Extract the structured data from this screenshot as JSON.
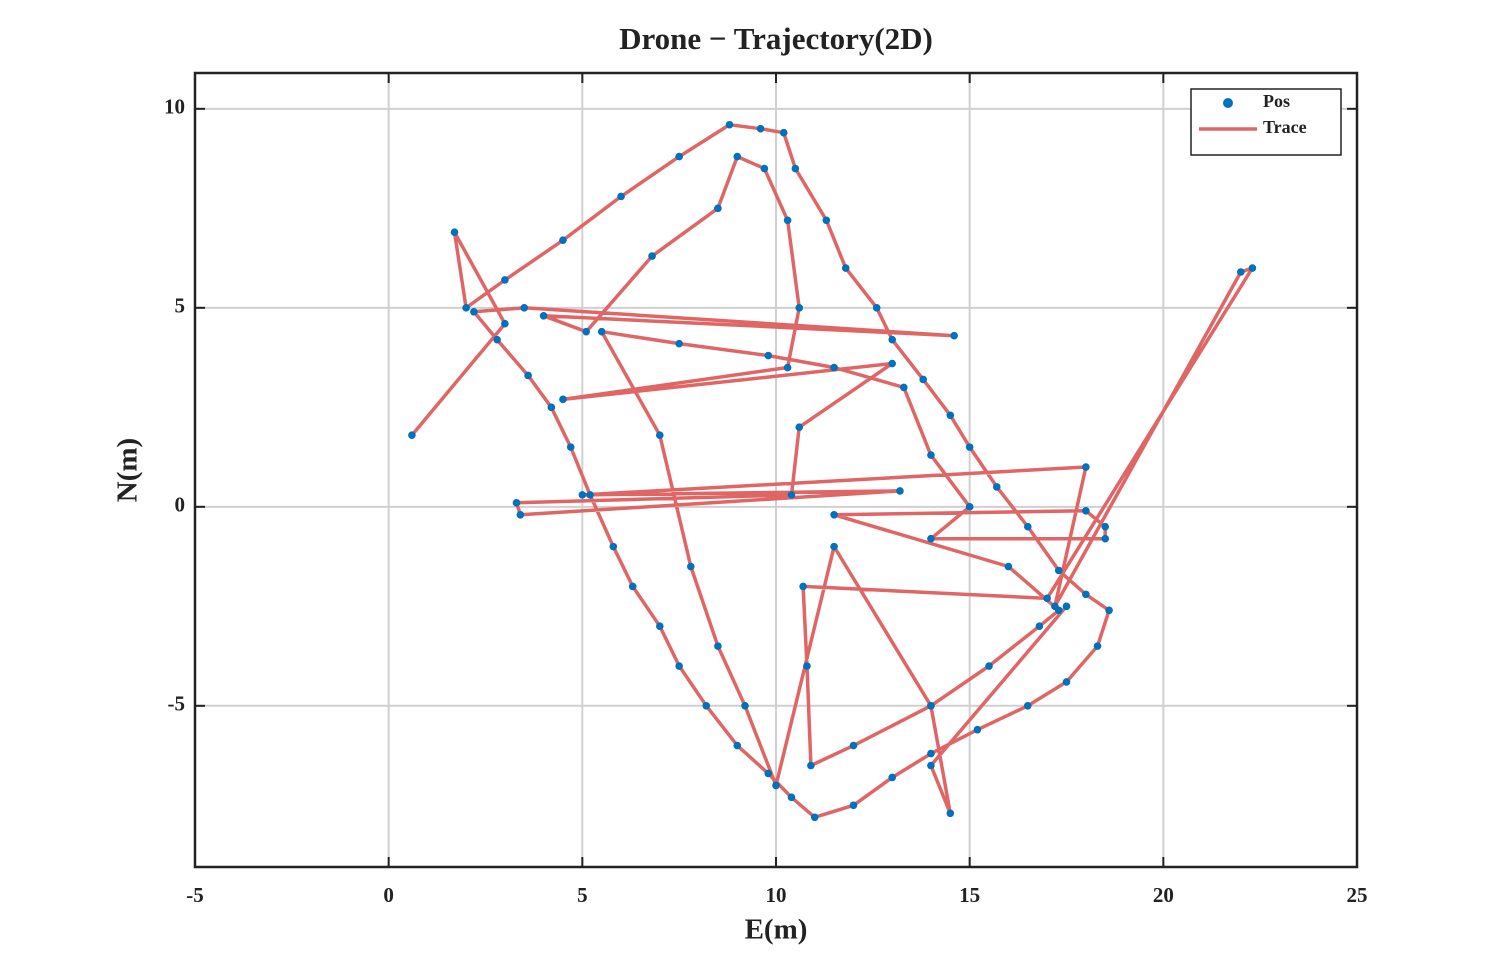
{
  "chart_data": {
    "type": "trajectory",
    "title": "Drone − Trajectory(2D)",
    "x_label": "E(m)",
    "y_label": "N(m)",
    "xlim": [
      -5,
      25
    ],
    "ylim": [
      -9.05,
      10.9
    ],
    "xticks": [
      -5,
      0,
      5,
      10,
      15,
      20,
      25
    ],
    "yticks": [
      -5,
      0,
      5,
      10
    ],
    "grid": true,
    "legend": "upper right",
    "x": [
      0.6,
      3.0,
      1.7,
      2.0,
      3.0,
      4.5,
      6.0,
      7.5,
      8.8,
      9.6,
      10.2,
      10.5,
      11.3,
      11.8,
      12.6,
      13.0,
      13.8,
      14.5,
      15.0,
      15.7,
      16.5,
      17.3,
      18.0,
      18.6,
      18.3,
      17.5,
      16.5,
      15.2,
      14.0,
      13.0,
      12.0,
      11.0,
      10.4,
      9.8,
      9.0,
      8.2,
      7.5,
      7.0,
      6.3,
      5.8,
      5.2,
      4.7,
      4.2,
      3.6,
      2.8,
      2.2,
      3.5,
      14.6,
      4.0,
      5.1,
      6.8,
      8.5,
      9.0,
      9.7,
      10.3,
      10.6,
      10.3,
      4.5,
      13.0,
      10.6,
      10.4,
      3.3,
      3.4,
      13.2,
      5.0,
      18.0,
      17.2,
      22.0,
      22.3,
      17.0,
      10.7,
      10.8,
      10.9,
      12.0,
      14.0,
      15.5,
      16.8,
      17.3,
      16.0,
      11.5,
      18.0,
      18.5,
      18.5,
      14.0,
      15.0,
      14.0,
      13.3,
      11.5,
      9.8,
      7.5,
      5.5,
      7.0,
      7.8,
      8.5,
      9.2,
      10.0,
      11.5,
      14.0,
      14.5,
      14.0,
      17.5
    ],
    "series": [
      {
        "name": "Pos",
        "mode": "markers",
        "color": "#0072bd",
        "values": [
          1.8,
          4.6,
          6.9,
          5.0,
          5.7,
          6.7,
          7.8,
          8.8,
          9.6,
          9.5,
          9.4,
          8.5,
          7.2,
          6.0,
          5.0,
          4.2,
          3.2,
          2.3,
          1.5,
          0.5,
          -0.5,
          -1.6,
          -2.2,
          -2.6,
          -3.5,
          -4.4,
          -5.0,
          -5.6,
          -6.2,
          -6.8,
          -7.5,
          -7.8,
          -7.3,
          -6.7,
          -6.0,
          -5.0,
          -4.0,
          -3.0,
          -2.0,
          -1.0,
          0.3,
          1.5,
          2.5,
          3.3,
          4.2,
          4.9,
          5.0,
          4.3,
          4.8,
          4.4,
          6.3,
          7.5,
          8.8,
          8.5,
          7.2,
          5.0,
          3.5,
          2.7,
          3.6,
          2.0,
          0.3,
          0.1,
          -0.2,
          0.4,
          0.3,
          1.0,
          -2.5,
          5.9,
          6.0,
          -2.3,
          -2.0,
          -4.0,
          -6.5,
          -6.0,
          -5.0,
          -4.0,
          -3.0,
          -2.6,
          -1.5,
          -0.2,
          -0.1,
          -0.5,
          -0.8,
          -0.8,
          0.0,
          1.3,
          3.0,
          3.5,
          3.8,
          4.1,
          4.4,
          1.8,
          -1.5,
          -3.5,
          -5.0,
          -7.0,
          -1.0,
          -5.0,
          -7.7,
          -6.5,
          -2.5
        ]
      },
      {
        "name": "Trace",
        "mode": "line",
        "color": "#e06666",
        "values": [
          1.8,
          4.6,
          6.9,
          5.0,
          5.7,
          6.7,
          7.8,
          8.8,
          9.6,
          9.5,
          9.4,
          8.5,
          7.2,
          6.0,
          5.0,
          4.2,
          3.2,
          2.3,
          1.5,
          0.5,
          -0.5,
          -1.6,
          -2.2,
          -2.6,
          -3.5,
          -4.4,
          -5.0,
          -5.6,
          -6.2,
          -6.8,
          -7.5,
          -7.8,
          -7.3,
          -6.7,
          -6.0,
          -5.0,
          -4.0,
          -3.0,
          -2.0,
          -1.0,
          0.3,
          1.5,
          2.5,
          3.3,
          4.2,
          4.9,
          5.0,
          4.3,
          4.8,
          4.4,
          6.3,
          7.5,
          8.8,
          8.5,
          7.2,
          5.0,
          3.5,
          2.7,
          3.6,
          2.0,
          0.3,
          0.1,
          -0.2,
          0.4,
          0.3,
          1.0,
          -2.5,
          5.9,
          6.0,
          -2.3,
          -2.0,
          -4.0,
          -6.5,
          -6.0,
          -5.0,
          -4.0,
          -3.0,
          -2.6,
          -1.5,
          -0.2,
          -0.1,
          -0.5,
          -0.8,
          -0.8,
          0.0,
          1.3,
          3.0,
          3.5,
          3.8,
          4.1,
          4.4,
          1.8,
          -1.5,
          -3.5,
          -5.0,
          -7.0,
          -1.0,
          -5.0,
          -7.7,
          -6.5,
          -2.5
        ]
      }
    ]
  }
}
